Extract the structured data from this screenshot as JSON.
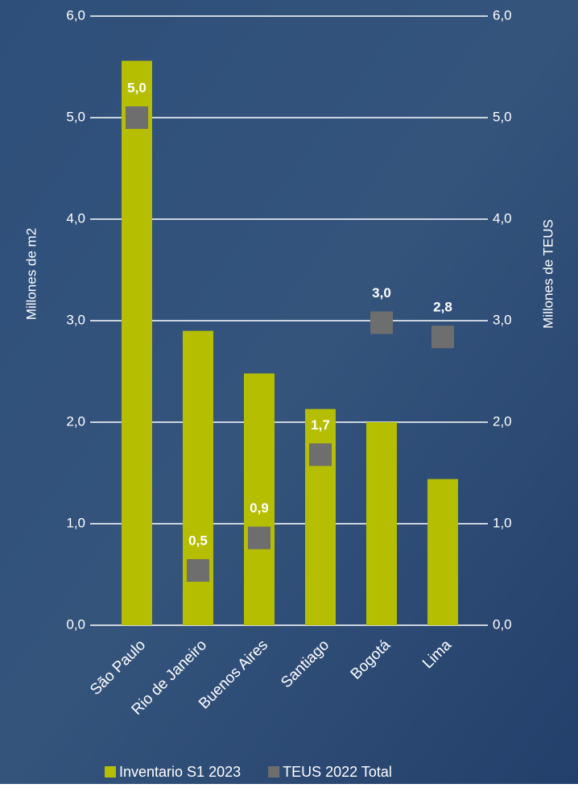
{
  "chart_data": {
    "type": "bar_marker",
    "categories": [
      "São Paulo",
      "Rio de Janeiro",
      "Buenos Aires",
      "Santiago",
      "Bogotá",
      "Lima"
    ],
    "y_label": "Millones de m2",
    "y2_label": "Millones de TEUS",
    "ylim": [
      0,
      6
    ],
    "y2lim": [
      0,
      6
    ],
    "yticks": [
      {
        "value": 0,
        "label": "0,0"
      },
      {
        "value": 1,
        "label": "1,0"
      },
      {
        "value": 2,
        "label": "2,0"
      },
      {
        "value": 3,
        "label": "3,0"
      },
      {
        "value": 4,
        "label": "4,0"
      },
      {
        "value": 5,
        "label": "5,0"
      },
      {
        "value": 6,
        "label": "6,0"
      }
    ],
    "y2ticks": [
      {
        "value": 0,
        "label": "0,0"
      },
      {
        "value": 1,
        "label": "1,0"
      },
      {
        "value": 2,
        "label": "2,0"
      },
      {
        "value": 3,
        "label": "3,0"
      },
      {
        "value": 4,
        "label": "4,0"
      },
      {
        "value": 5,
        "label": "5,0"
      },
      {
        "value": 6,
        "label": "6,0"
      }
    ],
    "grid": true,
    "series": [
      {
        "name": "Inventario S1 2023",
        "color": "#b5be00",
        "kind": "bar",
        "values": [
          5.56,
          2.9,
          2.48,
          2.13,
          2.0,
          1.44
        ]
      },
      {
        "name": "TEUS 2022 Total",
        "color": "#6e6e6e",
        "kind": "marker",
        "axis": "y2",
        "values": [
          5.0,
          0.54,
          0.86,
          1.68,
          2.98,
          2.84
        ],
        "value_labels": [
          "5,0",
          "0,5",
          "0,9",
          "1,7",
          "3,0",
          "2,8"
        ]
      }
    ]
  }
}
